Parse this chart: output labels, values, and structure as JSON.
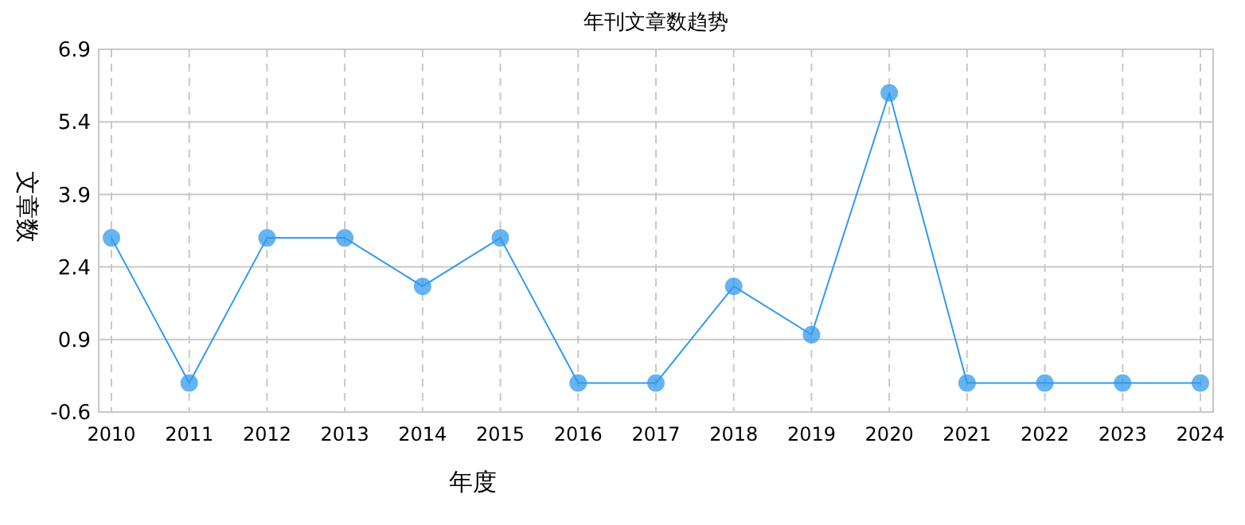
{
  "chart_data": {
    "type": "line",
    "title": "年刊文章数趋势",
    "xlabel": "年度",
    "ylabel": "文章数",
    "categories": [
      "2010",
      "2011",
      "2012",
      "2013",
      "2014",
      "2015",
      "2016",
      "2017",
      "2018",
      "2019",
      "2020",
      "2021",
      "2022",
      "2023",
      "2024"
    ],
    "series": [
      {
        "color": "#3399ee",
        "values": [
          3,
          0,
          3,
          3,
          2,
          3,
          0,
          0,
          2,
          1,
          6,
          0,
          0,
          0,
          0
        ]
      }
    ],
    "ylim": [
      -0.6,
      6.9
    ],
    "yticks": [
      -0.6,
      0.9,
      2.4,
      3.9,
      5.4,
      6.9
    ],
    "grid": true,
    "marker": "circle",
    "line_style": "solid"
  }
}
